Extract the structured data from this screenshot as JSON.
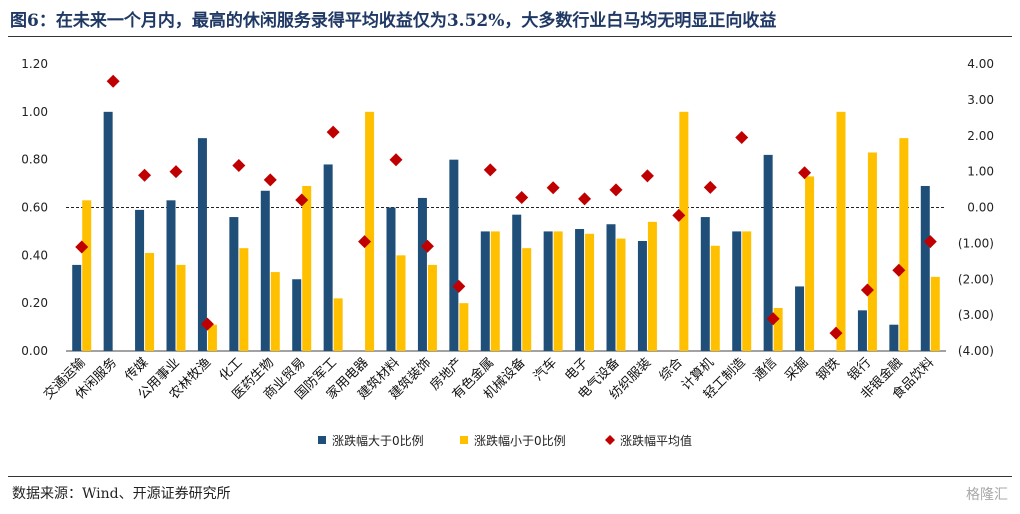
{
  "header": {
    "title": "图6：在未来一个月内，最高的休闲服务录得平均收益仅为3.52%，大多数行业白马均无明显正向收益"
  },
  "footer": {
    "source": "数据来源：Wind、开源证券研究所",
    "watermark": "格隆汇"
  },
  "colors": {
    "up": "#1f4e79",
    "down": "#ffc000",
    "avg": "#c00000"
  },
  "chart_data": {
    "type": "bar",
    "title": "",
    "categories": [
      "交通运输",
      "休闲服务",
      "传媒",
      "公用事业",
      "农林牧渔",
      "化工",
      "医药生物",
      "商业贸易",
      "国防军工",
      "家用电器",
      "建筑材料",
      "建筑装饰",
      "房地产",
      "有色金属",
      "机械设备",
      "汽车",
      "电子",
      "电气设备",
      "纺织服装",
      "综合",
      "计算机",
      "轻工制造",
      "通信",
      "采掘",
      "钢铁",
      "银行",
      "非银金融",
      "食品饮料"
    ],
    "series": [
      {
        "name": "涨跌幅大于0比例",
        "axis": "left",
        "type": "bar",
        "values": [
          0.36,
          1.0,
          0.59,
          0.63,
          0.89,
          0.56,
          0.67,
          0.3,
          0.78,
          0.0,
          0.6,
          0.64,
          0.8,
          0.5,
          0.57,
          0.5,
          0.51,
          0.53,
          0.46,
          0.0,
          0.56,
          0.5,
          0.82,
          0.27,
          0.0,
          0.17,
          0.11,
          0.69
        ]
      },
      {
        "name": "涨跌幅小于0比例",
        "axis": "left",
        "type": "bar",
        "values": [
          0.63,
          0.0,
          0.41,
          0.36,
          0.11,
          0.43,
          0.33,
          0.69,
          0.22,
          1.0,
          0.4,
          0.36,
          0.2,
          0.5,
          0.43,
          0.5,
          0.49,
          0.47,
          0.54,
          1.0,
          0.44,
          0.5,
          0.18,
          0.73,
          1.0,
          0.83,
          0.89,
          0.31
        ]
      },
      {
        "name": "涨跌幅平均值",
        "axis": "right",
        "type": "scatter",
        "values": [
          -1.1,
          3.52,
          0.9,
          1.0,
          -3.25,
          1.17,
          0.77,
          0.21,
          2.1,
          -0.95,
          1.33,
          -1.08,
          -2.2,
          1.05,
          0.28,
          0.55,
          0.24,
          0.49,
          0.88,
          -0.22,
          0.56,
          1.95,
          -3.1,
          0.97,
          -3.5,
          -2.3,
          -1.75,
          -0.95
        ]
      }
    ],
    "ylim_left": [
      0,
      1.2
    ],
    "yticks_left": [
      "0.00",
      "0.20",
      "0.40",
      "0.60",
      "0.80",
      "1.00",
      "1.20"
    ],
    "ylim_right": [
      -4,
      4
    ],
    "yticks_right": [
      "(4.00)",
      "(3.00)",
      "(2.00)",
      "(1.00)",
      "0.00",
      "1.00",
      "2.00",
      "3.00",
      "4.00"
    ],
    "reference_line": "dashed at right-axis 0.00",
    "legend": "bottom"
  }
}
